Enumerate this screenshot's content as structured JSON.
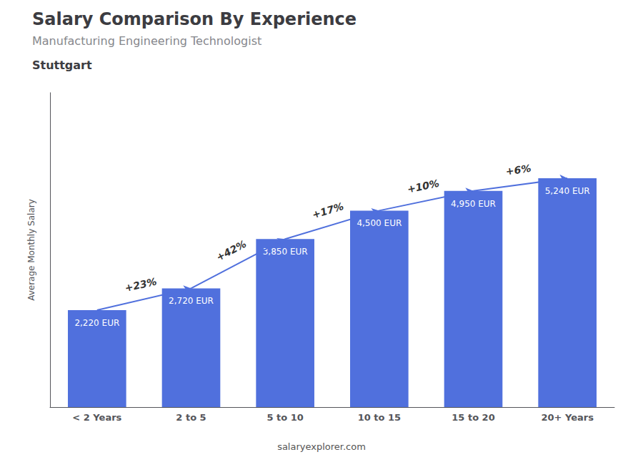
{
  "chart_data": {
    "type": "bar",
    "title": "Salary Comparison By Experience",
    "subtitle": "Manufacturing Engineering Technologist",
    "annotations": [
      "Stuttgart",
      "salaryexplorer.com"
    ],
    "categories": [
      "< 2 Years",
      "2 to 5",
      "5 to 10",
      "10 to 15",
      "15 to 20",
      "20+ Years"
    ],
    "values": [
      2220,
      2720,
      3850,
      4500,
      4950,
      5240
    ],
    "data_labels": true,
    "value_labels": [
      "2,220 EUR",
      "2,720 EUR",
      "3,850 EUR",
      "4,500 EUR",
      "4,950 EUR",
      "5,240 EUR"
    ],
    "change_labels": [
      "+23%",
      "+42%",
      "+17%",
      "+10%",
      "+6%"
    ],
    "ylabel": "Average Monthly Salary",
    "ylim": [
      0,
      7200
    ],
    "tick_labels": "x",
    "grid": false
  }
}
